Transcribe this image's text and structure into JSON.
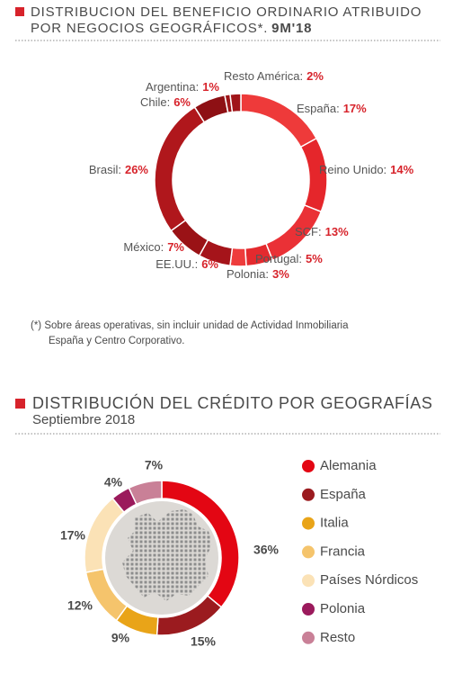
{
  "chart_data": [
    {
      "type": "donut",
      "title": [
        "DISTRIBUCION DEL BENEFICIO ORDINARIO ATRIBUIDO",
        "POR NEGOCIOS GEOGRÁFICOS*."
      ],
      "period": "9M'18",
      "categories": [
        "España:",
        "Reino Unido:",
        "SCF:",
        "Portugal:",
        "Polonia:",
        "EE.UU.:",
        "México:",
        "Brasil:",
        "Chile:",
        "Argentina:",
        "Resto América:"
      ],
      "values": [
        17,
        14,
        13,
        5,
        3,
        6,
        7,
        26,
        6,
        1,
        2
      ],
      "value_labels": [
        "17%",
        "14%",
        "13%",
        "5%",
        "3%",
        "6%",
        "7%",
        "26%",
        "6%",
        "1%",
        "2%"
      ],
      "colors": [
        "#ee3a3a",
        "#e5262b",
        "#ea3136",
        "#e42a2e",
        "#ee3c3c",
        "#a5141a",
        "#9a1216",
        "#b0171c",
        "#8e1014",
        "#9d1418",
        "#a01519"
      ],
      "footnote": [
        "(*) Sobre áreas operativas, sin incluir unidad de Actividad Inmobiliaria",
        "España y Centro Corporativo."
      ]
    },
    {
      "type": "donut",
      "title": [
        "DISTRIBUCIÓN DEL CRÉDITO POR GEOGRAFÍAS"
      ],
      "subtitle": "Septiembre 2018",
      "categories": [
        "Alemania",
        "España",
        "Italia",
        "Francia",
        "Países Nórdicos",
        "Polonia",
        "Resto"
      ],
      "values": [
        36,
        15,
        9,
        12,
        17,
        4,
        7
      ],
      "value_labels": [
        "36%",
        "15%",
        "9%",
        "12%",
        "17%",
        "4%",
        "7%"
      ],
      "colors": [
        "#e30613",
        "#9b1b1f",
        "#e9a418",
        "#f5c46c",
        "#fbe2b6",
        "#9b1a5c",
        "#c98097"
      ],
      "legend": "right"
    }
  ]
}
